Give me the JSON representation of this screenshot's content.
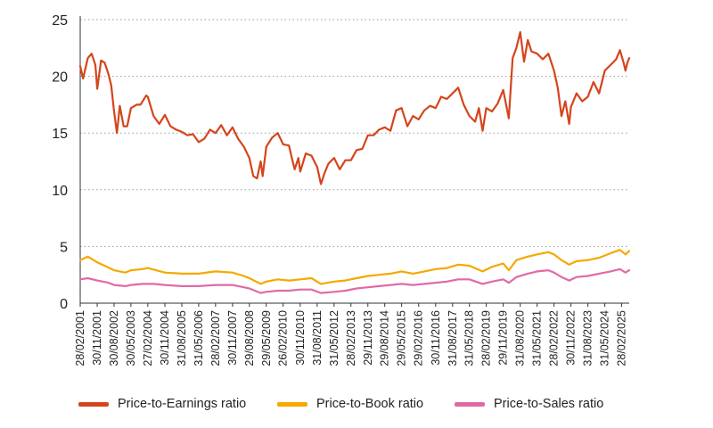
{
  "chart_data": {
    "type": "line",
    "ylim": [
      0,
      25
    ],
    "yticks": [
      0,
      5,
      10,
      15,
      20,
      25
    ],
    "xlim": [
      "2001-02-28",
      "2025-06-30"
    ],
    "x_tick_labels": [
      "28/02/2001",
      "30/11/2001",
      "30/08/2002",
      "30/05/2003",
      "27/02/2004",
      "30/11/2004",
      "31/08/2005",
      "31/05/2006",
      "28/02/2007",
      "30/11/2007",
      "29/08/2008",
      "29/05/2009",
      "26/02/2010",
      "30/11/2010",
      "31/08/2011",
      "31/05/2012",
      "28/02/2013",
      "29/11/2013",
      "29/08/2014",
      "29/05/2015",
      "29/02/2016",
      "30/11/2016",
      "31/08/2017",
      "31/05/2018",
      "28/02/2019",
      "29/11/2019",
      "31/08/2020",
      "31/05/2021",
      "28/02/2022",
      "30/11/2022",
      "31/08/2023",
      "31/05/2024",
      "28/02/2025"
    ],
    "grid": "horizontal-dotted",
    "legend_position": "bottom",
    "series": [
      {
        "name": "Price-to-Earnings ratio",
        "color": "#d4451c",
        "points": [
          [
            "2001-02-28",
            20.9
          ],
          [
            "2001-04-15",
            19.8
          ],
          [
            "2001-06-30",
            21.6
          ],
          [
            "2001-08-31",
            22.0
          ],
          [
            "2001-10-31",
            21.0
          ],
          [
            "2001-11-30",
            18.9
          ],
          [
            "2002-01-31",
            21.4
          ],
          [
            "2002-03-31",
            21.2
          ],
          [
            "2002-05-31",
            20.2
          ],
          [
            "2002-07-15",
            19.2
          ],
          [
            "2002-08-30",
            16.9
          ],
          [
            "2002-10-15",
            15.0
          ],
          [
            "2002-11-30",
            17.4
          ],
          [
            "2003-01-31",
            15.6
          ],
          [
            "2003-03-31",
            15.6
          ],
          [
            "2003-05-30",
            17.2
          ],
          [
            "2003-08-31",
            17.5
          ],
          [
            "2003-10-31",
            17.5
          ],
          [
            "2004-01-31",
            18.3
          ],
          [
            "2004-02-27",
            18.2
          ],
          [
            "2004-05-31",
            16.5
          ],
          [
            "2004-08-31",
            15.8
          ],
          [
            "2004-11-30",
            16.6
          ],
          [
            "2005-02-28",
            15.6
          ],
          [
            "2005-05-31",
            15.3
          ],
          [
            "2005-08-31",
            15.1
          ],
          [
            "2005-11-30",
            14.8
          ],
          [
            "2006-02-28",
            14.9
          ],
          [
            "2006-05-31",
            14.2
          ],
          [
            "2006-08-31",
            14.5
          ],
          [
            "2006-11-30",
            15.3
          ],
          [
            "2007-02-28",
            15.0
          ],
          [
            "2007-05-31",
            15.7
          ],
          [
            "2007-08-31",
            14.8
          ],
          [
            "2007-11-30",
            15.5
          ],
          [
            "2008-02-29",
            14.5
          ],
          [
            "2008-05-31",
            13.8
          ],
          [
            "2008-08-29",
            12.8
          ],
          [
            "2008-10-31",
            11.2
          ],
          [
            "2008-12-31",
            11.0
          ],
          [
            "2009-02-28",
            12.5
          ],
          [
            "2009-03-31",
            11.2
          ],
          [
            "2009-05-29",
            13.8
          ],
          [
            "2009-08-31",
            14.6
          ],
          [
            "2009-11-30",
            15.0
          ],
          [
            "2010-02-26",
            14.0
          ],
          [
            "2010-05-31",
            13.9
          ],
          [
            "2010-07-31",
            12.5
          ],
          [
            "2010-08-31",
            11.8
          ],
          [
            "2010-10-31",
            12.8
          ],
          [
            "2010-11-30",
            11.6
          ],
          [
            "2011-02-28",
            13.2
          ],
          [
            "2011-05-31",
            13.0
          ],
          [
            "2011-08-31",
            12.0
          ],
          [
            "2011-10-31",
            10.5
          ],
          [
            "2011-12-31",
            11.5
          ],
          [
            "2012-02-29",
            12.3
          ],
          [
            "2012-05-31",
            12.8
          ],
          [
            "2012-08-31",
            11.8
          ],
          [
            "2012-11-30",
            12.6
          ],
          [
            "2013-02-28",
            12.6
          ],
          [
            "2013-05-31",
            13.5
          ],
          [
            "2013-08-31",
            13.6
          ],
          [
            "2013-11-29",
            14.8
          ],
          [
            "2014-02-28",
            14.8
          ],
          [
            "2014-05-31",
            15.3
          ],
          [
            "2014-08-29",
            15.5
          ],
          [
            "2014-11-30",
            15.2
          ],
          [
            "2015-02-28",
            17.0
          ],
          [
            "2015-05-29",
            17.2
          ],
          [
            "2015-08-31",
            15.6
          ],
          [
            "2015-11-30",
            16.5
          ],
          [
            "2016-02-29",
            16.2
          ],
          [
            "2016-05-31",
            17.0
          ],
          [
            "2016-08-31",
            17.4
          ],
          [
            "2016-11-30",
            17.2
          ],
          [
            "2017-02-28",
            18.2
          ],
          [
            "2017-05-31",
            18.0
          ],
          [
            "2017-08-31",
            18.5
          ],
          [
            "2017-11-30",
            19.0
          ],
          [
            "2018-02-28",
            17.5
          ],
          [
            "2018-05-31",
            16.5
          ],
          [
            "2018-08-31",
            16.0
          ],
          [
            "2018-10-31",
            17.2
          ],
          [
            "2018-12-31",
            15.2
          ],
          [
            "2019-02-28",
            17.2
          ],
          [
            "2019-05-31",
            16.9
          ],
          [
            "2019-08-31",
            17.6
          ],
          [
            "2019-11-29",
            18.8
          ],
          [
            "2020-02-28",
            16.3
          ],
          [
            "2020-04-30",
            21.6
          ],
          [
            "2020-06-30",
            22.5
          ],
          [
            "2020-08-31",
            23.9
          ],
          [
            "2020-10-31",
            21.3
          ],
          [
            "2020-12-31",
            23.2
          ],
          [
            "2021-02-28",
            22.2
          ],
          [
            "2021-05-31",
            22.0
          ],
          [
            "2021-08-31",
            21.5
          ],
          [
            "2021-11-30",
            22.0
          ],
          [
            "2022-02-28",
            20.5
          ],
          [
            "2022-04-30",
            19.0
          ],
          [
            "2022-06-30",
            16.5
          ],
          [
            "2022-08-31",
            17.8
          ],
          [
            "2022-10-31",
            15.8
          ],
          [
            "2022-11-30",
            17.3
          ],
          [
            "2023-02-28",
            18.5
          ],
          [
            "2023-05-31",
            17.8
          ],
          [
            "2023-08-31",
            18.2
          ],
          [
            "2023-11-30",
            19.5
          ],
          [
            "2024-02-29",
            18.5
          ],
          [
            "2024-05-31",
            20.5
          ],
          [
            "2024-08-31",
            21.0
          ],
          [
            "2024-11-30",
            21.5
          ],
          [
            "2025-01-31",
            22.3
          ],
          [
            "2025-03-31",
            21.2
          ],
          [
            "2025-04-30",
            20.5
          ],
          [
            "2025-05-31",
            21.2
          ],
          [
            "2025-06-30",
            21.6
          ]
        ]
      },
      {
        "name": "Price-to-Book ratio",
        "color": "#f5a800",
        "points": [
          [
            "2001-02-28",
            3.8
          ],
          [
            "2001-06-30",
            4.1
          ],
          [
            "2001-08-31",
            3.9
          ],
          [
            "2001-11-30",
            3.6
          ],
          [
            "2002-03-31",
            3.3
          ],
          [
            "2002-08-30",
            2.9
          ],
          [
            "2002-11-30",
            2.8
          ],
          [
            "2003-02-28",
            2.7
          ],
          [
            "2003-05-30",
            2.9
          ],
          [
            "2003-11-30",
            3.0
          ],
          [
            "2004-02-27",
            3.1
          ],
          [
            "2004-11-30",
            2.7
          ],
          [
            "2005-08-31",
            2.6
          ],
          [
            "2006-05-31",
            2.6
          ],
          [
            "2007-02-28",
            2.8
          ],
          [
            "2007-11-30",
            2.7
          ],
          [
            "2008-05-31",
            2.4
          ],
          [
            "2008-08-29",
            2.2
          ],
          [
            "2009-02-28",
            1.7
          ],
          [
            "2009-05-29",
            1.9
          ],
          [
            "2009-11-30",
            2.1
          ],
          [
            "2010-05-31",
            2.0
          ],
          [
            "2010-11-30",
            2.1
          ],
          [
            "2011-05-31",
            2.2
          ],
          [
            "2011-10-31",
            1.7
          ],
          [
            "2012-05-31",
            1.9
          ],
          [
            "2012-11-30",
            2.0
          ],
          [
            "2013-05-31",
            2.2
          ],
          [
            "2013-11-29",
            2.4
          ],
          [
            "2014-05-31",
            2.5
          ],
          [
            "2014-11-30",
            2.6
          ],
          [
            "2015-05-29",
            2.8
          ],
          [
            "2015-11-30",
            2.6
          ],
          [
            "2016-05-31",
            2.8
          ],
          [
            "2016-11-30",
            3.0
          ],
          [
            "2017-05-31",
            3.1
          ],
          [
            "2017-11-30",
            3.4
          ],
          [
            "2018-05-31",
            3.3
          ],
          [
            "2018-12-31",
            2.8
          ],
          [
            "2019-05-31",
            3.2
          ],
          [
            "2019-11-29",
            3.5
          ],
          [
            "2020-02-28",
            2.9
          ],
          [
            "2020-06-30",
            3.8
          ],
          [
            "2020-12-31",
            4.1
          ],
          [
            "2021-05-31",
            4.3
          ],
          [
            "2021-11-30",
            4.5
          ],
          [
            "2022-02-28",
            4.3
          ],
          [
            "2022-06-30",
            3.8
          ],
          [
            "2022-10-31",
            3.4
          ],
          [
            "2023-02-28",
            3.7
          ],
          [
            "2023-08-31",
            3.8
          ],
          [
            "2024-02-29",
            4.0
          ],
          [
            "2024-08-31",
            4.4
          ],
          [
            "2025-01-31",
            4.7
          ],
          [
            "2025-04-30",
            4.3
          ],
          [
            "2025-06-30",
            4.6
          ]
        ]
      },
      {
        "name": "Price-to-Sales ratio",
        "color": "#e06aa6",
        "points": [
          [
            "2001-02-28",
            2.1
          ],
          [
            "2001-06-30",
            2.2
          ],
          [
            "2001-11-30",
            2.0
          ],
          [
            "2002-05-31",
            1.8
          ],
          [
            "2002-08-30",
            1.6
          ],
          [
            "2003-02-28",
            1.5
          ],
          [
            "2003-05-30",
            1.6
          ],
          [
            "2003-11-30",
            1.7
          ],
          [
            "2004-05-31",
            1.7
          ],
          [
            "2004-11-30",
            1.6
          ],
          [
            "2005-08-31",
            1.5
          ],
          [
            "2006-05-31",
            1.5
          ],
          [
            "2007-02-28",
            1.6
          ],
          [
            "2007-11-30",
            1.6
          ],
          [
            "2008-05-31",
            1.4
          ],
          [
            "2008-08-29",
            1.3
          ],
          [
            "2009-02-28",
            0.9
          ],
          [
            "2009-05-29",
            1.0
          ],
          [
            "2009-11-30",
            1.1
          ],
          [
            "2010-05-31",
            1.1
          ],
          [
            "2010-11-30",
            1.2
          ],
          [
            "2011-05-31",
            1.2
          ],
          [
            "2011-10-31",
            0.9
          ],
          [
            "2012-05-31",
            1.0
          ],
          [
            "2012-11-30",
            1.1
          ],
          [
            "2013-05-31",
            1.3
          ],
          [
            "2013-11-29",
            1.4
          ],
          [
            "2014-05-31",
            1.5
          ],
          [
            "2014-11-30",
            1.6
          ],
          [
            "2015-05-29",
            1.7
          ],
          [
            "2015-11-30",
            1.6
          ],
          [
            "2016-05-31",
            1.7
          ],
          [
            "2016-11-30",
            1.8
          ],
          [
            "2017-05-31",
            1.9
          ],
          [
            "2017-11-30",
            2.1
          ],
          [
            "2018-05-31",
            2.1
          ],
          [
            "2018-12-31",
            1.7
          ],
          [
            "2019-05-31",
            1.9
          ],
          [
            "2019-11-29",
            2.1
          ],
          [
            "2020-02-28",
            1.8
          ],
          [
            "2020-06-30",
            2.3
          ],
          [
            "2020-12-31",
            2.6
          ],
          [
            "2021-05-31",
            2.8
          ],
          [
            "2021-11-30",
            2.9
          ],
          [
            "2022-02-28",
            2.7
          ],
          [
            "2022-06-30",
            2.3
          ],
          [
            "2022-10-31",
            2.0
          ],
          [
            "2023-02-28",
            2.3
          ],
          [
            "2023-08-31",
            2.4
          ],
          [
            "2024-02-29",
            2.6
          ],
          [
            "2024-08-31",
            2.8
          ],
          [
            "2025-01-31",
            3.0
          ],
          [
            "2025-04-30",
            2.7
          ],
          [
            "2025-06-30",
            2.9
          ]
        ]
      }
    ]
  }
}
